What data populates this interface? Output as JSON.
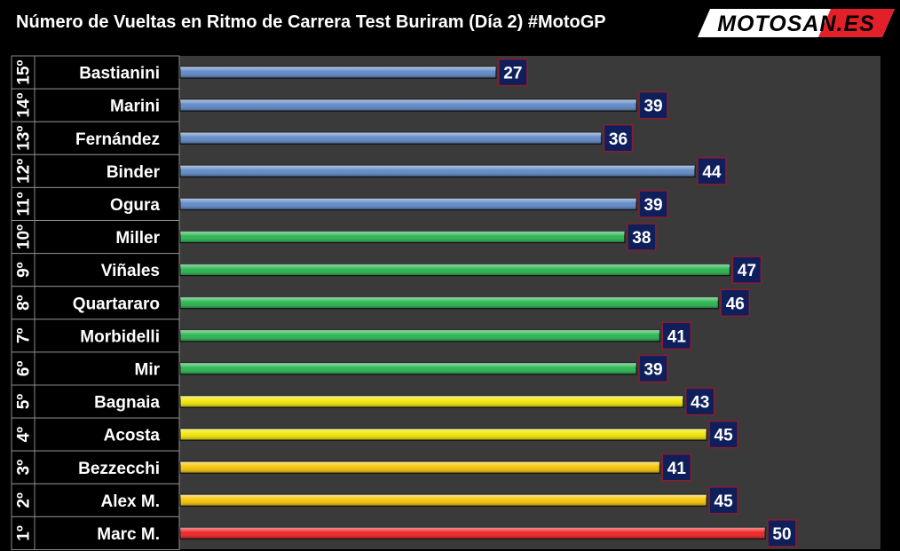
{
  "header": {
    "title": "Número de Vueltas en Ritmo de Carrera Test Buriram (Día 2) #MotoGP",
    "logo_text": "MOTOSAN.ES"
  },
  "colors": {
    "background": "#000000",
    "plot_background": "#3a3a3a",
    "label_border": "#8a8a8a",
    "value_box_fill": "#0f1f5c",
    "value_box_border": "#8a1d2e",
    "logo_red": "#e3202a"
  },
  "chart_data": {
    "type": "bar",
    "orientation": "horizontal",
    "title": "Número de Vueltas en Ritmo de Carrera Test Buriram (Día 2) #MotoGP",
    "xlabel": "",
    "ylabel": "",
    "xlim": [
      0,
      55
    ],
    "grid": false,
    "legend": "none",
    "categories": [
      "Bastianini",
      "Marini",
      "Fernández",
      "Binder",
      "Ogura",
      "Miller",
      "Viñales",
      "Quartararo",
      "Morbidelli",
      "Mir",
      "Bagnaia",
      "Acosta",
      "Bezzecchi",
      "Alex M.",
      "Marc M."
    ],
    "ranks": [
      "15º",
      "14º",
      "13º",
      "12º",
      "11º",
      "10º",
      "9º",
      "8º",
      "7º",
      "6º",
      "5º",
      "4º",
      "3º",
      "2º",
      "1º"
    ],
    "values": [
      27,
      39,
      36,
      44,
      39,
      38,
      47,
      46,
      41,
      39,
      43,
      45,
      41,
      45,
      50
    ],
    "bar_colors": [
      "#5b86c6",
      "#5b86c6",
      "#5b86c6",
      "#5b86c6",
      "#5b86c6",
      "#22b34a",
      "#22b34a",
      "#22b34a",
      "#22b34a",
      "#22b34a",
      "#f2e600",
      "#f2e600",
      "#f6c400",
      "#f6c400",
      "#ee1c1c"
    ]
  }
}
